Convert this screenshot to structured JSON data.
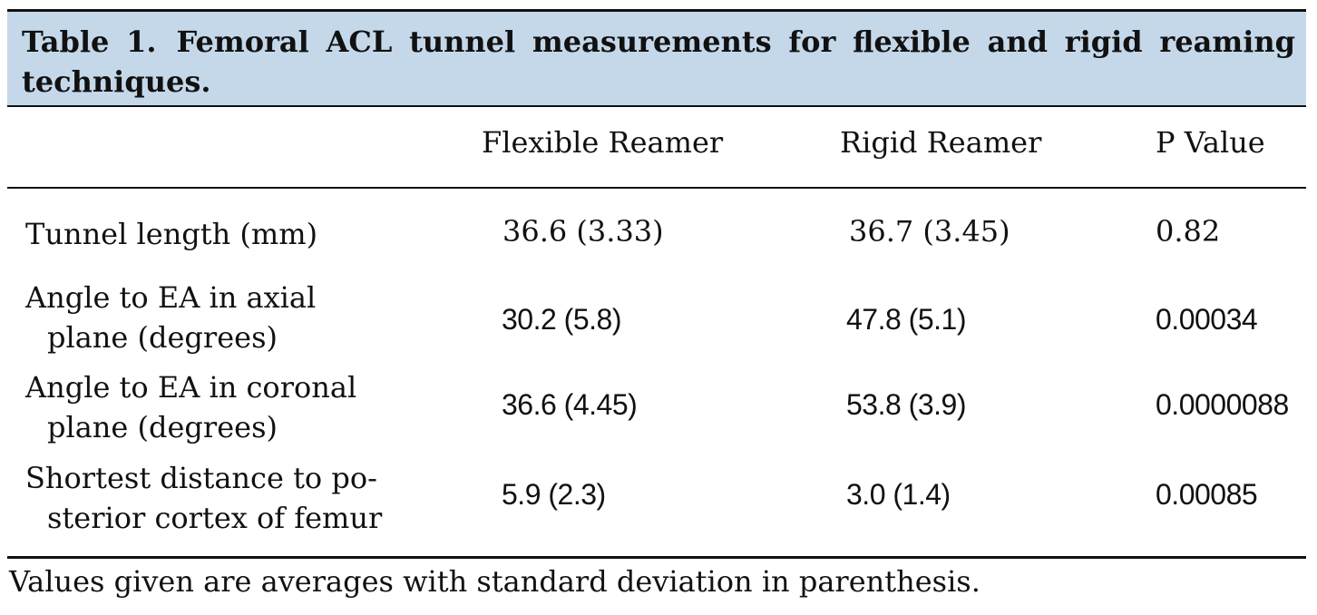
{
  "table": {
    "caption_number": "Table 1.",
    "caption_text": "Femoral ACL tunnel measurements for flexible and rigid reaming techniques.",
    "columns": [
      "Flexible Reamer",
      "Rigid Reamer",
      "P Value"
    ],
    "rows": [
      {
        "label_line1": "Tunnel length (mm)",
        "label_line2": "",
        "flexible": "36.6 (3.33)",
        "rigid": "36.7 (3.45)",
        "p_value": "0.82"
      },
      {
        "label_line1": "Angle to EA in axial",
        "label_line2": "plane (degrees)",
        "flexible": "30.2 (5.8)",
        "rigid": "47.8 (5.1)",
        "p_value": "0.00034"
      },
      {
        "label_line1": "Angle to EA in coronal",
        "label_line2": "plane (degrees)",
        "flexible": "36.6 (4.45)",
        "rigid": "53.8 (3.9)",
        "p_value": "0.0000088"
      },
      {
        "label_line1": "Shortest distance to po-",
        "label_line2": "sterior cortex of femur",
        "flexible": "5.9 (2.3)",
        "rigid": "3.0 (1.4)",
        "p_value": "0.00085"
      }
    ],
    "footnote": "Values given are averages with standard deviation in parenthesis."
  },
  "colors": {
    "caption_band": "#c5d8ea",
    "rules": "#111111"
  }
}
